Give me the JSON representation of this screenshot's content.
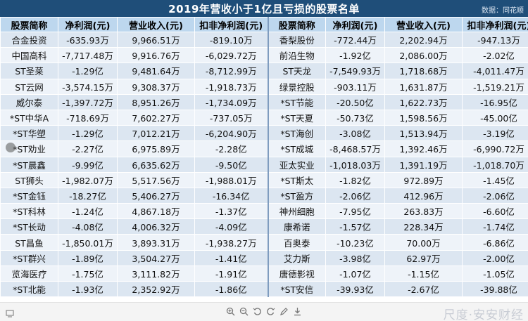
{
  "title": "2019年营收小于1亿且亏损的股票名单",
  "source": "数据：同花顺",
  "headers": [
    "股票简称",
    "净利润(元)",
    "营业收入(元)",
    "扣非净利润(元)",
    "股票简称",
    "净利润(元)",
    "营业收入(元)",
    "扣非净利润(元)"
  ],
  "rows": [
    [
      "合金投资",
      "-635.93万",
      "9,966.51万",
      "-819.10万",
      "香梨股份",
      "-772.44万",
      "2,202.94万",
      "-947.13万"
    ],
    [
      "中国高科",
      "-7,717.48万",
      "9,916.76万",
      "-6,029.72万",
      "前沿生物",
      "-1.92亿",
      "2,086.00万",
      "-2.02亿"
    ],
    [
      "ST圣莱",
      "-1.29亿",
      "9,481.64万",
      "-8,712.99万",
      "ST天龙",
      "-7,549.93万",
      "1,718.68万",
      "-4,011.47万"
    ],
    [
      "ST云网",
      "-3,574.15万",
      "9,308.37万",
      "-1,918.73万",
      "绿景控股",
      "-903.11万",
      "1,631.87万",
      "-1,519.21万"
    ],
    [
      "威尔泰",
      "-1,397.72万",
      "8,951.26万",
      "-1,734.09万",
      "*ST节能",
      "-20.50亿",
      "1,622.73万",
      "-16.95亿"
    ],
    [
      "*ST中华A",
      "-718.69万",
      "7,602.27万",
      "-737.05万",
      "*ST天夏",
      "-50.73亿",
      "1,598.56万",
      "-45.00亿"
    ],
    [
      "*ST华塑",
      "-1.29亿",
      "7,012.21万",
      "-6,204.90万",
      "*ST海创",
      "-3.08亿",
      "1,513.94万",
      "-3.19亿"
    ],
    [
      "*ST劝业",
      "-2.27亿",
      "6,975.89万",
      "-2.28亿",
      "*ST成城",
      "-8,468.57万",
      "1,392.46万",
      "-6,990.72万"
    ],
    [
      "*ST晨鑫",
      "-9.99亿",
      "6,635.62万",
      "-9.50亿",
      "亚太实业",
      "-1,018.03万",
      "1,391.19万",
      "-1,018.70万"
    ],
    [
      "ST狮头",
      "-1,982.07万",
      "5,517.56万",
      "-1,988.01万",
      "*ST斯太",
      "-1.82亿",
      "972.89万",
      "-1.45亿"
    ],
    [
      "*ST金钰",
      "-18.27亿",
      "5,406.27万",
      "-16.34亿",
      "*ST盈方",
      "-2.06亿",
      "412.96万",
      "-2.06亿"
    ],
    [
      "*ST科林",
      "-1.24亿",
      "4,867.18万",
      "-1.37亿",
      "神州细胞",
      "-7.95亿",
      "263.83万",
      "-6.60亿"
    ],
    [
      "*ST长动",
      "-4.08亿",
      "4,006.32万",
      "-4.09亿",
      "康希诺",
      "-1.57亿",
      "228.34万",
      "-1.74亿"
    ],
    [
      "ST昌鱼",
      "-1,850.01万",
      "3,893.31万",
      "-1,938.27万",
      "百奥泰",
      "-10.23亿",
      "70.00万",
      "-6.86亿"
    ],
    [
      "*ST群兴",
      "-1.89亿",
      "3,504.27万",
      "-1.41亿",
      "艾力斯",
      "-3.98亿",
      "62.97万",
      "-2.00亿"
    ],
    [
      "览海医疗",
      "-1.75亿",
      "3,111.82万",
      "-1.91亿",
      "唐德影视",
      "-1.07亿",
      "-1.15亿",
      "-1.05亿"
    ],
    [
      "*ST北能",
      "-1.93亿",
      "2,352.92万",
      "-1.86亿",
      "*ST安信",
      "-39.93亿",
      "-2.67亿",
      "-39.88亿"
    ]
  ],
  "viewer": {
    "tools": [
      "zoom-in-icon",
      "zoom-out-icon",
      "rotate-left-icon",
      "rotate-right-icon",
      "edit-icon",
      "download-icon"
    ],
    "watermark": "尺度·安安财经"
  }
}
